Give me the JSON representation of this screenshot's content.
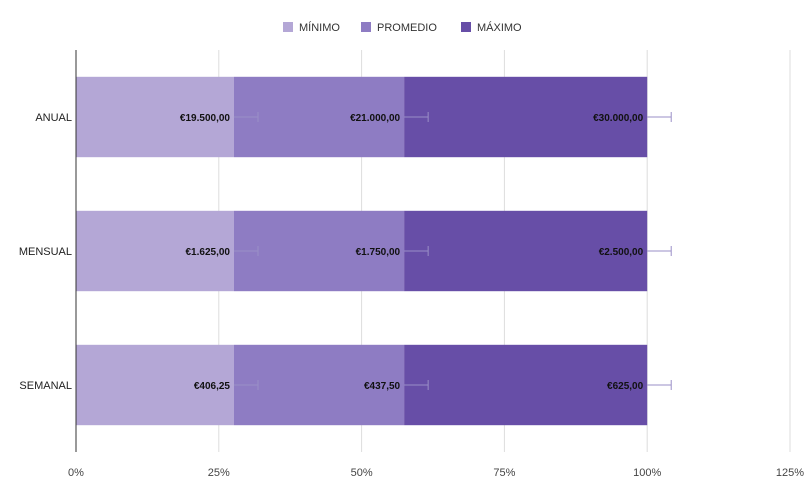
{
  "chart_data": {
    "type": "bar",
    "orientation": "horizontal",
    "stacked": "percent",
    "categories": [
      "ANUAL",
      "MENSUAL",
      "SEMANAL"
    ],
    "series": [
      {
        "name": "MÍNIMO",
        "values": [
          19500,
          1625,
          406.25
        ],
        "labels": [
          "€19.500,00",
          "€1.625,00",
          "€406,25"
        ],
        "color": "#b4a7d6"
      },
      {
        "name": "PROMEDIO",
        "values": [
          21000,
          1750,
          437.5
        ],
        "labels": [
          "€21.000,00",
          "€1.750,00",
          "€437,50"
        ],
        "color": "#8e7cc3"
      },
      {
        "name": "MÁXIMO",
        "values": [
          30000,
          2500,
          625
        ],
        "labels": [
          "€30.000,00",
          "€2.500,00",
          "€625,00"
        ],
        "color": "#674ea7"
      }
    ],
    "x_ticks": [
      "0%",
      "25%",
      "50%",
      "75%",
      "100%",
      "125%"
    ],
    "xlim": [
      0,
      125
    ],
    "grid": true,
    "legend": "top",
    "error_bars": true
  }
}
